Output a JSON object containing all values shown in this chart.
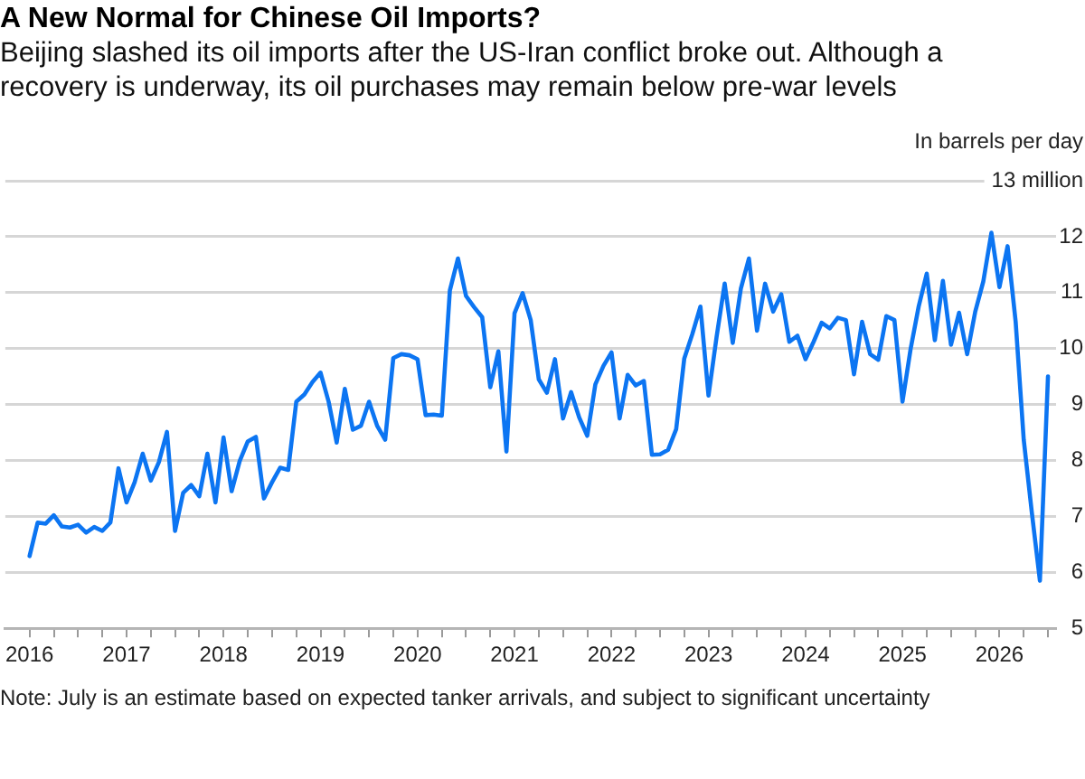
{
  "chart_data": {
    "type": "line",
    "title": "A New Normal for Chinese Oil Imports?",
    "subtitle": "Beijing slashed its oil imports after the US-Iran conflict broke out. Although a recovery is underway, its oil purchases may remain below pre-war levels",
    "ylabel": "In barrels per day",
    "annotations": [
      "Note: July is an estimate based on expected tanker arrivals, and subject to significant uncertainty"
    ],
    "x": [
      "2016-01",
      "2016-02",
      "2016-03",
      "2016-04",
      "2016-05",
      "2016-06",
      "2016-07",
      "2016-08",
      "2016-09",
      "2016-10",
      "2016-11",
      "2016-12",
      "2017-01",
      "2017-02",
      "2017-03",
      "2017-04",
      "2017-05",
      "2017-06",
      "2017-07",
      "2017-08",
      "2017-09",
      "2017-10",
      "2017-11",
      "2017-12",
      "2018-01",
      "2018-02",
      "2018-03",
      "2018-04",
      "2018-05",
      "2018-06",
      "2018-07",
      "2018-08",
      "2018-09",
      "2018-10",
      "2018-11",
      "2018-12",
      "2019-01",
      "2019-02",
      "2019-03",
      "2019-04",
      "2019-05",
      "2019-06",
      "2019-07",
      "2019-08",
      "2019-09",
      "2019-10",
      "2019-11",
      "2019-12",
      "2020-01",
      "2020-02",
      "2020-03",
      "2020-04",
      "2020-05",
      "2020-06",
      "2020-07",
      "2020-08",
      "2020-09",
      "2020-10",
      "2020-11",
      "2020-12",
      "2021-01",
      "2021-02",
      "2021-03",
      "2021-04",
      "2021-05",
      "2021-06",
      "2021-07",
      "2021-08",
      "2021-09",
      "2021-10",
      "2021-11",
      "2021-12",
      "2022-01",
      "2022-02",
      "2022-03",
      "2022-04",
      "2022-05",
      "2022-06",
      "2022-07",
      "2022-08",
      "2022-09",
      "2022-10",
      "2022-11",
      "2022-12",
      "2023-01",
      "2023-02",
      "2023-03",
      "2023-04",
      "2023-05",
      "2023-06",
      "2023-07",
      "2023-08",
      "2023-09",
      "2023-10",
      "2023-11",
      "2023-12",
      "2024-01",
      "2024-02",
      "2024-03",
      "2024-04",
      "2024-05",
      "2024-06",
      "2024-07",
      "2024-08",
      "2024-09",
      "2024-10",
      "2024-11",
      "2024-12",
      "2025-01",
      "2025-02",
      "2025-03",
      "2025-04",
      "2025-05",
      "2025-06",
      "2025-07",
      "2025-08",
      "2025-09",
      "2025-10",
      "2025-11",
      "2025-12",
      "2026-01",
      "2026-02",
      "2026-03",
      "2026-04",
      "2026-05",
      "2026-06",
      "2026-07"
    ],
    "values": [
      6.29,
      6.89,
      6.87,
      7.02,
      6.82,
      6.8,
      6.85,
      6.71,
      6.81,
      6.74,
      6.89,
      7.86,
      7.25,
      7.61,
      8.12,
      7.64,
      7.97,
      8.51,
      6.74,
      7.42,
      7.56,
      7.36,
      8.12,
      7.25,
      8.41,
      7.45,
      7.99,
      8.34,
      8.42,
      7.32,
      7.61,
      7.87,
      7.83,
      9.05,
      9.18,
      9.4,
      9.57,
      9.05,
      8.32,
      9.28,
      8.55,
      8.62,
      9.05,
      8.62,
      8.37,
      9.83,
      9.9,
      9.88,
      9.81,
      8.81,
      8.82,
      8.8,
      11.04,
      11.61,
      10.94,
      10.74,
      10.56,
      9.31,
      9.95,
      8.16,
      10.63,
      10.99,
      10.51,
      9.45,
      9.21,
      9.81,
      8.75,
      9.22,
      8.77,
      8.44,
      9.36,
      9.69,
      9.93,
      8.75,
      9.53,
      9.34,
      9.42,
      8.1,
      8.11,
      8.19,
      8.56,
      9.82,
      10.26,
      10.75,
      9.16,
      10.21,
      11.16,
      10.1,
      11.07,
      11.61,
      10.32,
      11.16,
      10.66,
      10.97,
      10.12,
      10.23,
      9.81,
      10.12,
      10.46,
      10.36,
      10.55,
      10.51,
      9.54,
      10.48,
      9.9,
      9.8,
      10.58,
      10.51,
      9.05,
      9.99,
      10.75,
      11.34,
      10.15,
      11.21,
      10.07,
      10.64,
      9.9,
      10.66,
      11.2,
      12.07,
      11.1,
      11.83,
      10.48,
      8.37,
      7.07,
      5.85,
      9.5
    ],
    "color": "#0c75f2",
    "xlim": [
      "2015-10",
      "2026-08"
    ],
    "xticks": [
      "2016",
      {
        "value": "2016-04",
        "label": null
      },
      {
        "value": "2016-07",
        "label": null
      },
      {
        "value": "2016-10",
        "label": null
      },
      "2017",
      {
        "value": "2017-04",
        "label": null
      },
      {
        "value": "2017-07",
        "label": null
      },
      {
        "value": "2017-10",
        "label": null
      },
      "2018",
      {
        "value": "2018-04",
        "label": null
      },
      {
        "value": "2018-07",
        "label": null
      },
      {
        "value": "2018-10",
        "label": null
      },
      "2019",
      {
        "value": "2019-04",
        "label": null
      },
      {
        "value": "2019-07",
        "label": null
      },
      {
        "value": "2019-10",
        "label": null
      },
      "2020",
      {
        "value": "2020-04",
        "label": null
      },
      {
        "value": "2020-07",
        "label": null
      },
      {
        "value": "2020-10",
        "label": null
      },
      "2021",
      {
        "value": "2021-04",
        "label": null
      },
      {
        "value": "2021-07",
        "label": null
      },
      {
        "value": "2021-10",
        "label": null
      },
      "2022",
      {
        "value": "2022-04",
        "label": null
      },
      {
        "value": "2022-07",
        "label": null
      },
      {
        "value": "2022-10",
        "label": null
      },
      "2023",
      {
        "value": "2023-04",
        "label": null
      },
      {
        "value": "2023-07",
        "label": null
      },
      {
        "value": "2023-10",
        "label": null
      },
      "2024",
      {
        "value": "2024-04",
        "label": null
      },
      {
        "value": "2024-07",
        "label": null
      },
      {
        "value": "2024-10",
        "label": null
      },
      "2025",
      {
        "value": "2025-04",
        "label": null
      },
      {
        "value": "2025-07",
        "label": null
      },
      {
        "value": "2025-10",
        "label": null
      },
      "2026",
      {
        "value": "2026-04",
        "label": null
      },
      {
        "value": "2026-07",
        "label": null
      }
    ],
    "ylim": [
      5,
      13
    ],
    "yticks": [
      5,
      6,
      7,
      8,
      9,
      10,
      11,
      12,
      {
        "value": 13,
        "label": "13 million"
      }
    ],
    "grid": "y"
  }
}
